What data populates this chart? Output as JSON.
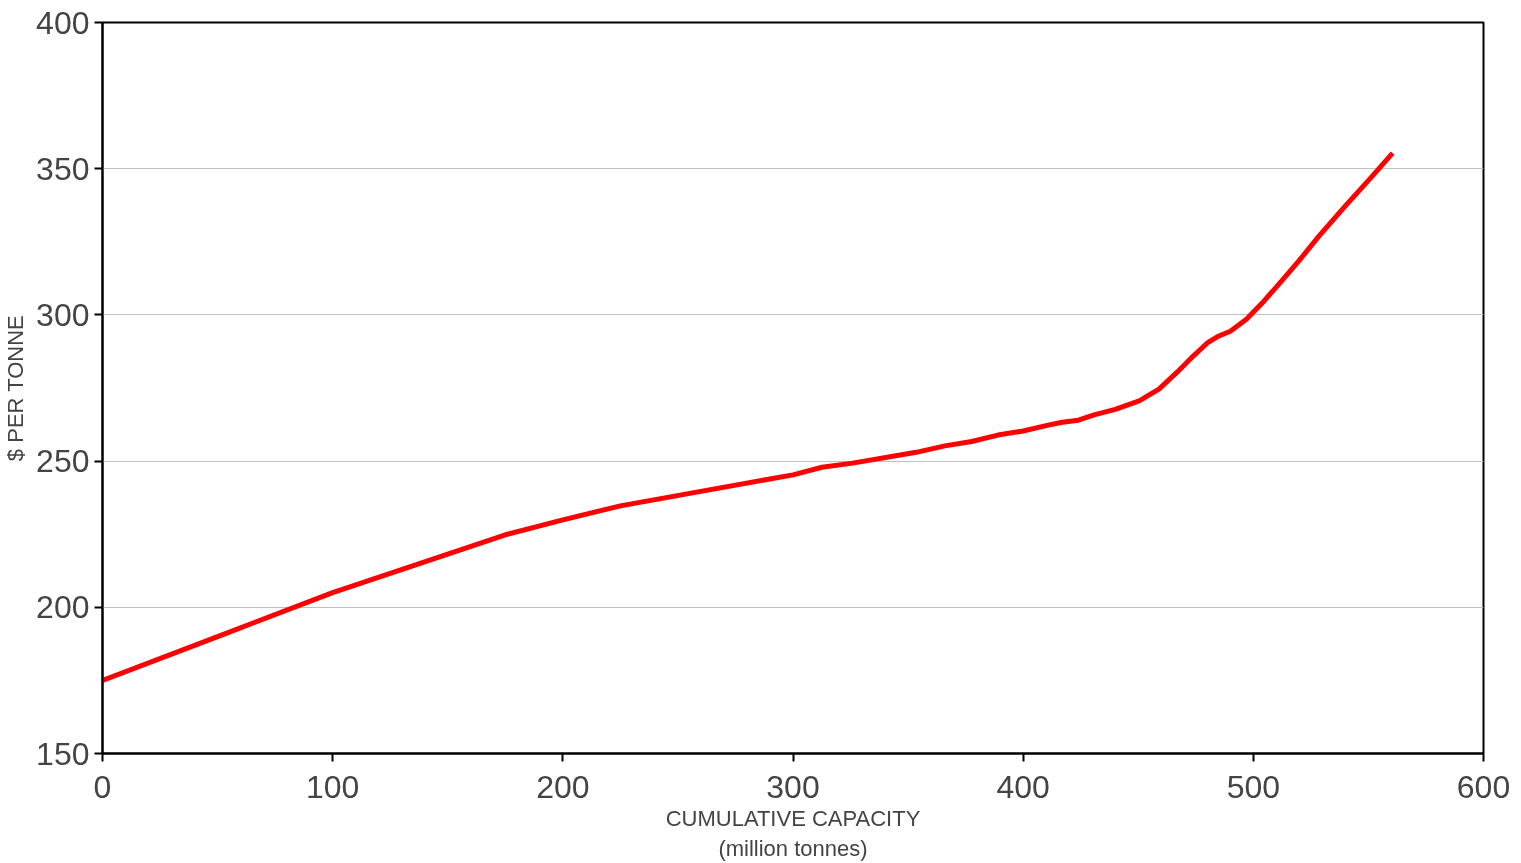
{
  "chart_data": {
    "type": "line",
    "xlabel": "CUMULATIVE CAPACITY\n(million tonnes)",
    "ylabel": "$ PER TONNE",
    "xlim": [
      0,
      600
    ],
    "xticks": [
      0,
      100,
      200,
      300,
      400,
      500,
      600
    ],
    "ylim": [
      150,
      400
    ],
    "yticks": [
      150,
      200,
      250,
      300,
      350,
      400
    ],
    "grid": "y",
    "line_style": "solid",
    "series": [
      {
        "color": "#ff0000",
        "x": [
          0,
          50,
          100,
          175,
          200,
          225,
          300,
          312.6,
          325.9,
          353.5,
          366,
          377.6,
          389,
          400,
          410.4,
          417,
          424,
          430.8,
          440,
          450.4,
          459,
          467,
          474,
          480,
          484.5,
          490,
          497,
          504.6,
          512.7,
          519.6,
          528.6,
          540,
          551.4,
          560.5
        ],
        "values": [
          175,
          190,
          205,
          224.8,
          229.9,
          234.7,
          245.3,
          247.9,
          249.3,
          253,
          255.2,
          256.7,
          258.9,
          260.3,
          262.2,
          263.3,
          264,
          265.8,
          267.7,
          270.6,
          274.6,
          280.5,
          286,
          290.4,
          292.6,
          294.4,
          298.5,
          304.7,
          312,
          318.3,
          327,
          337.3,
          347.2,
          355.3
        ]
      }
    ]
  }
}
